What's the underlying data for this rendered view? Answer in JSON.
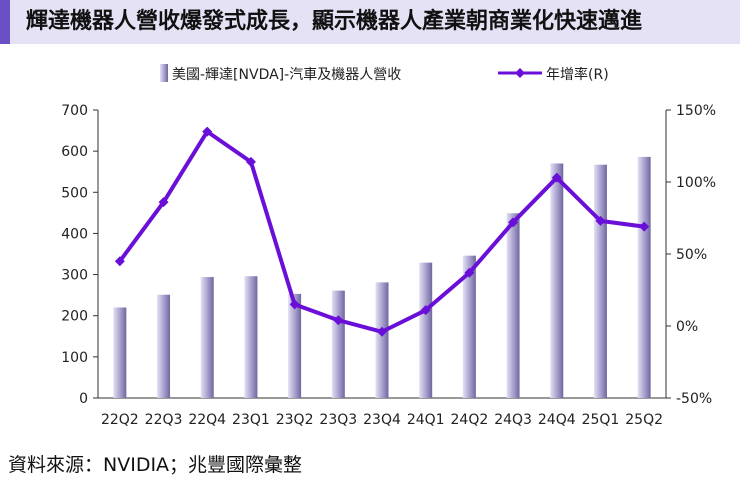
{
  "header": {
    "title": "輝達機器人營收爆發式成長，顯示機器人產業朝商業化快速邁進"
  },
  "colors": {
    "title_bg": "#e6e2f5",
    "accent": "#6b4fc4",
    "bar": "#9e97c4",
    "line": "#6a0fd8"
  },
  "chart_data": {
    "type": "bar+line",
    "categories": [
      "22Q2",
      "22Q3",
      "22Q4",
      "23Q1",
      "23Q2",
      "23Q3",
      "23Q4",
      "24Q1",
      "24Q2",
      "24Q3",
      "24Q4",
      "25Q1",
      "25Q2"
    ],
    "series": [
      {
        "name": "美國-輝達[NVDA]-汽車及機器人營收",
        "type": "bar",
        "axis": "left",
        "values": [
          220,
          251,
          294,
          296,
          253,
          261,
          281,
          329,
          346,
          449,
          570,
          567,
          586
        ]
      },
      {
        "name": "年增率(R)",
        "type": "line",
        "axis": "right",
        "values": [
          45,
          86,
          135,
          114,
          15,
          4,
          -4,
          11,
          37,
          72,
          103,
          73,
          69
        ]
      }
    ],
    "y_left": {
      "min": 0,
      "max": 700,
      "ticks": [
        "0",
        "100",
        "200",
        "300",
        "400",
        "500",
        "600",
        "700"
      ]
    },
    "y_right": {
      "min": -50,
      "max": 150,
      "ticks": [
        "-50%",
        "0%",
        "50%",
        "100%",
        "150%"
      ]
    },
    "legend": [
      "美國-輝達[NVDA]-汽車及機器人營收",
      "年增率(R)"
    ],
    "legend_position": "top-center",
    "grid": false
  },
  "footer": {
    "source": "資料來源：NVIDIA；兆豐國際彙整"
  }
}
